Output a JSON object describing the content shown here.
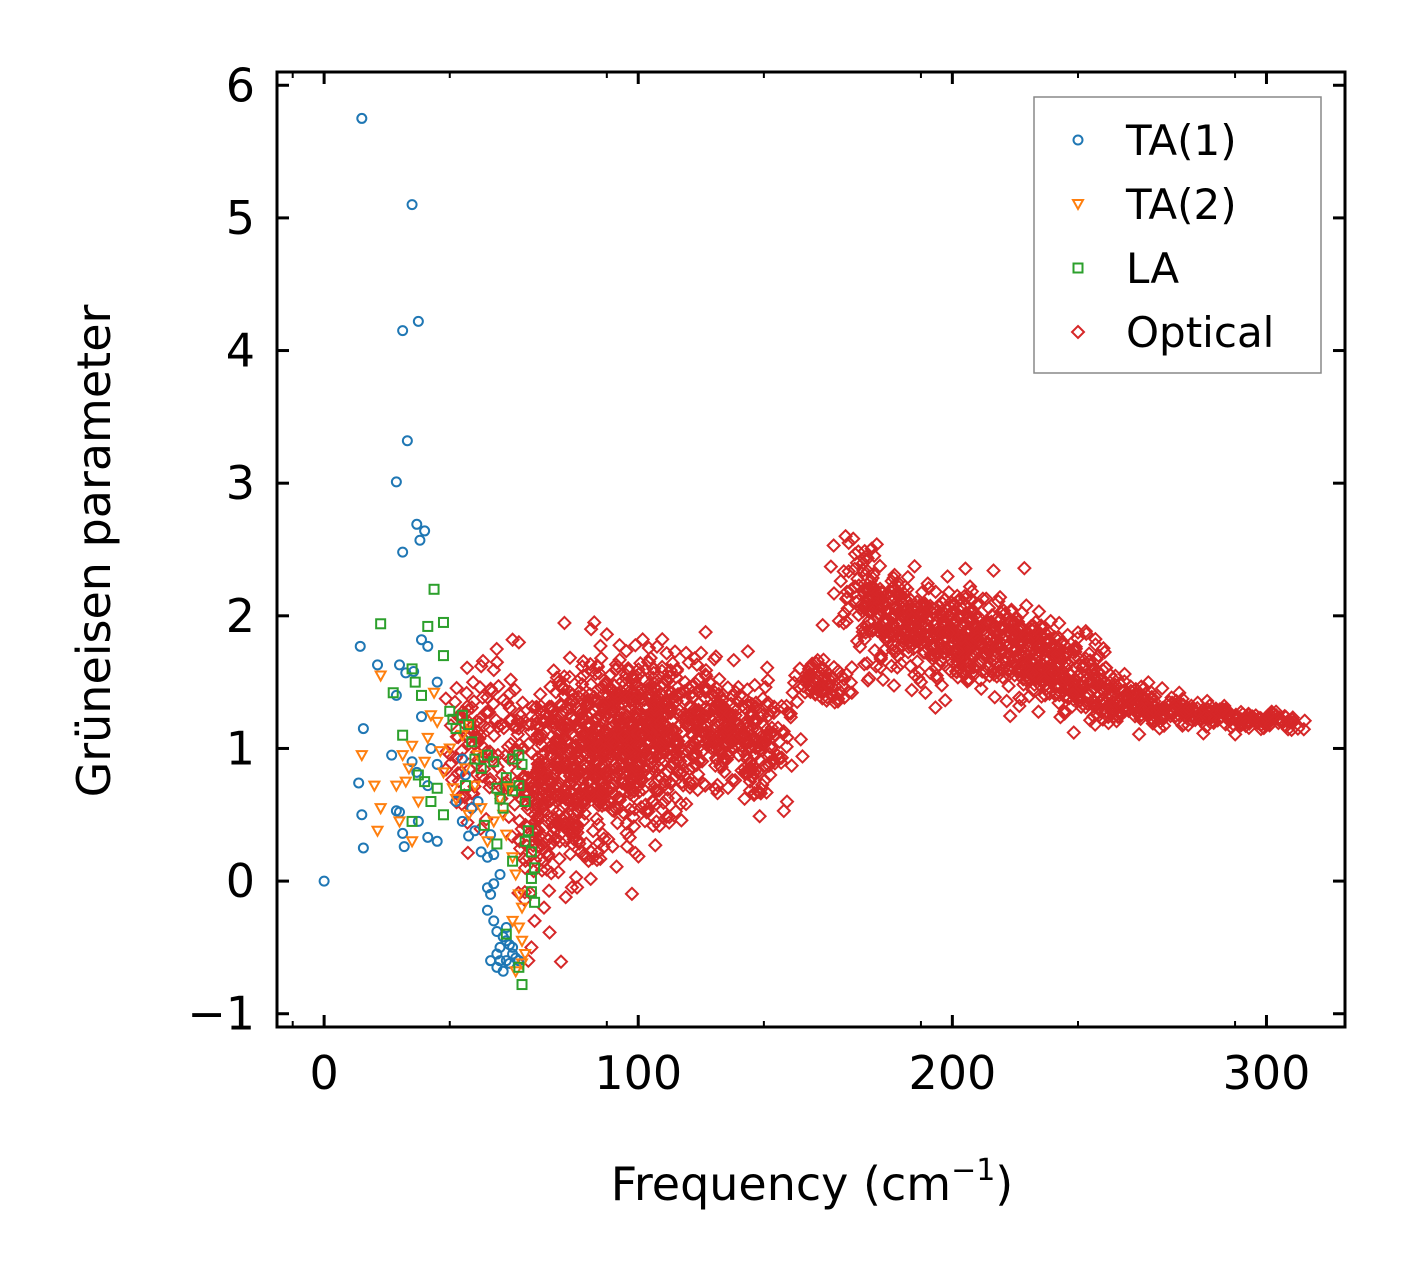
{
  "chart_data": {
    "type": "scatter",
    "title": "",
    "xlabel": "Frequency (cm",
    "xlabel_sup": "−1",
    "xlabel_end": ")",
    "ylabel": "Grüneisen parameter",
    "xlim": [
      -15,
      325
    ],
    "ylim": [
      -1.1,
      6.1
    ],
    "xticks": [
      0,
      100,
      200,
      300
    ],
    "xtick_labels": [
      "0",
      "100",
      "200",
      "300"
    ],
    "yticks": [
      -1,
      0,
      1,
      2,
      3,
      4,
      5,
      6
    ],
    "ytick_labels": [
      "−1",
      "0",
      "1",
      "2",
      "3",
      "4",
      "5",
      "6"
    ],
    "grid": false,
    "legend_position": "top-right",
    "series": [
      {
        "name": "TA(1)",
        "marker": "circle",
        "color": "#1f77b4",
        "points": [
          [
            0,
            0
          ],
          [
            12,
            5.75
          ],
          [
            28,
            5.1
          ],
          [
            30,
            4.22
          ],
          [
            25,
            4.15
          ],
          [
            26.5,
            3.32
          ],
          [
            23,
            3.01
          ],
          [
            29.5,
            2.69
          ],
          [
            32,
            2.64
          ],
          [
            30.5,
            2.57
          ],
          [
            25,
            2.48
          ],
          [
            11.5,
            1.77
          ],
          [
            17,
            1.63
          ],
          [
            24,
            1.63
          ],
          [
            26,
            1.57
          ],
          [
            33,
            1.77
          ],
          [
            31,
            1.82
          ],
          [
            28.5,
            1.58
          ],
          [
            23,
            1.4
          ],
          [
            36,
            1.5
          ],
          [
            12.5,
            1.15
          ],
          [
            31,
            1.24
          ],
          [
            21.5,
            0.95
          ],
          [
            34,
            1.0
          ],
          [
            28,
            0.9
          ],
          [
            29.5,
            0.82
          ],
          [
            36,
            0.88
          ],
          [
            11,
            0.74
          ],
          [
            33,
            0.72
          ],
          [
            12,
            0.5
          ],
          [
            23,
            0.53
          ],
          [
            25,
            0.36
          ],
          [
            24,
            0.52
          ],
          [
            30,
            0.45
          ],
          [
            33,
            0.33
          ],
          [
            36,
            0.3
          ],
          [
            12.5,
            0.25
          ],
          [
            25.5,
            0.26
          ],
          [
            42,
            0.6
          ],
          [
            44,
            0.45
          ],
          [
            45,
            0.8
          ],
          [
            46,
            0.34
          ],
          [
            48,
            0.38
          ],
          [
            49,
            0.6
          ],
          [
            50,
            0.22
          ],
          [
            52,
            0.18
          ],
          [
            53,
            0.35
          ],
          [
            54,
            0.2
          ],
          [
            44,
            0.92
          ],
          [
            47,
            0.55
          ],
          [
            52,
            -0.05
          ],
          [
            53,
            -0.1
          ],
          [
            54,
            -0.02
          ],
          [
            56,
            0.05
          ],
          [
            52,
            -0.22
          ],
          [
            54,
            -0.3
          ],
          [
            55,
            -0.38
          ],
          [
            57,
            -0.42
          ],
          [
            58,
            -0.35
          ],
          [
            59,
            -0.48
          ],
          [
            60,
            -0.55
          ],
          [
            55,
            -0.55
          ],
          [
            56,
            -0.6
          ],
          [
            57,
            -0.68
          ],
          [
            58,
            -0.6
          ],
          [
            59,
            -0.62
          ],
          [
            60,
            -0.5
          ],
          [
            61,
            -0.58
          ],
          [
            56,
            -0.5
          ],
          [
            58,
            -0.45
          ],
          [
            62,
            -0.6
          ],
          [
            55,
            -0.65
          ],
          [
            53,
            -0.6
          ]
        ]
      },
      {
        "name": "TA(2)",
        "marker": "triangle-down",
        "color": "#ff7f0e",
        "points": [
          [
            12,
            0.95
          ],
          [
            16,
            0.72
          ],
          [
            18,
            0.55
          ],
          [
            17,
            0.38
          ],
          [
            18,
            1.55
          ],
          [
            23,
            0.72
          ],
          [
            25,
            0.95
          ],
          [
            26,
            0.75
          ],
          [
            27,
            0.85
          ],
          [
            28,
            1.02
          ],
          [
            24,
            0.45
          ],
          [
            30,
            0.6
          ],
          [
            32,
            0.9
          ],
          [
            33,
            1.08
          ],
          [
            34,
            1.25
          ],
          [
            35,
            1.42
          ],
          [
            36,
            1.2
          ],
          [
            37,
            0.98
          ],
          [
            38,
            0.82
          ],
          [
            40,
            1.0
          ],
          [
            41,
            0.7
          ],
          [
            42,
            0.62
          ],
          [
            44,
            1.1
          ],
          [
            45,
            0.85
          ],
          [
            46,
            0.5
          ],
          [
            48,
            0.72
          ],
          [
            50,
            0.55
          ],
          [
            52,
            0.3
          ],
          [
            54,
            0.45
          ],
          [
            56,
            0.62
          ],
          [
            58,
            0.35
          ],
          [
            60,
            0.18
          ],
          [
            61,
            0.05
          ],
          [
            62,
            -0.1
          ],
          [
            63,
            -0.2
          ],
          [
            62,
            -0.35
          ],
          [
            63,
            -0.45
          ],
          [
            64,
            -0.55
          ],
          [
            63,
            -0.62
          ],
          [
            61,
            -0.68
          ],
          [
            28,
            0.3
          ],
          [
            46,
            1.18
          ],
          [
            49,
            0.95
          ],
          [
            57,
            0.5
          ],
          [
            60,
            -0.3
          ],
          [
            59,
            0.7
          ]
        ]
      },
      {
        "name": "LA",
        "marker": "square",
        "color": "#2ca02c",
        "points": [
          [
            18,
            1.94
          ],
          [
            35,
            2.2
          ],
          [
            38,
            1.95
          ],
          [
            33,
            1.92
          ],
          [
            38,
            1.7
          ],
          [
            22,
            1.42
          ],
          [
            28,
            1.6
          ],
          [
            29,
            1.5
          ],
          [
            31,
            1.4
          ],
          [
            40,
            1.28
          ],
          [
            41,
            1.22
          ],
          [
            42,
            1.15
          ],
          [
            44,
            1.25
          ],
          [
            46,
            1.18
          ],
          [
            47,
            1.05
          ],
          [
            48,
            0.92
          ],
          [
            50,
            0.85
          ],
          [
            52,
            0.95
          ],
          [
            54,
            0.9
          ],
          [
            55,
            0.7
          ],
          [
            56,
            0.62
          ],
          [
            57,
            0.55
          ],
          [
            58,
            0.78
          ],
          [
            60,
            0.68
          ],
          [
            62,
            0.95
          ],
          [
            63,
            0.88
          ],
          [
            64,
            0.6
          ],
          [
            65,
            0.38
          ],
          [
            66,
            0.22
          ],
          [
            67,
            0.1
          ],
          [
            66,
            0.02
          ],
          [
            66,
            -0.08
          ],
          [
            67,
            -0.16
          ],
          [
            64,
            0.3
          ],
          [
            62,
            0.72
          ],
          [
            60,
            0.92
          ],
          [
            30,
            0.8
          ],
          [
            32,
            0.75
          ],
          [
            34,
            0.6
          ],
          [
            36,
            0.7
          ],
          [
            38,
            0.5
          ],
          [
            28,
            0.45
          ],
          [
            25,
            1.1
          ],
          [
            45,
            0.72
          ],
          [
            51,
            0.42
          ],
          [
            55,
            0.28
          ],
          [
            62,
            -0.65
          ],
          [
            63,
            -0.78
          ],
          [
            60,
            0.15
          ],
          [
            58,
            -0.4
          ]
        ]
      },
      {
        "name": "Optical",
        "marker": "diamond",
        "color": "#d62728",
        "points": [],
        "clusters": [
          {
            "xc": 47,
            "xs": 4,
            "yc": 1.0,
            "ys": 0.3,
            "n": 70
          },
          {
            "xc": 60,
            "xs": 8,
            "yc": 1.05,
            "ys": 0.28,
            "n": 90
          },
          {
            "xc": 68,
            "xs": 4,
            "yc": 0.55,
            "ys": 0.3,
            "n": 90
          },
          {
            "xc": 80,
            "xs": 8,
            "yc": 0.8,
            "ys": 0.35,
            "n": 320
          },
          {
            "xc": 95,
            "xs": 10,
            "yc": 1.05,
            "ys": 0.33,
            "n": 420
          },
          {
            "xc": 110,
            "xs": 10,
            "yc": 1.15,
            "ys": 0.28,
            "n": 260
          },
          {
            "xc": 128,
            "xs": 8,
            "yc": 1.15,
            "ys": 0.2,
            "n": 170
          },
          {
            "xc": 138,
            "xs": 5,
            "yc": 1.0,
            "ys": 0.22,
            "n": 90
          },
          {
            "xc": 155,
            "xs": 3,
            "yc": 1.5,
            "ys": 0.08,
            "n": 40
          },
          {
            "xc": 162,
            "xs": 3,
            "yc": 1.45,
            "ys": 0.08,
            "n": 30
          },
          {
            "xc": 172,
            "xs": 4,
            "yc": 2.2,
            "ys": 0.18,
            "n": 80
          },
          {
            "xc": 185,
            "xs": 7,
            "yc": 1.95,
            "ys": 0.2,
            "n": 200
          },
          {
            "xc": 202,
            "xs": 7,
            "yc": 1.85,
            "ys": 0.18,
            "n": 220
          },
          {
            "xc": 220,
            "xs": 8,
            "yc": 1.75,
            "ys": 0.17,
            "n": 220
          },
          {
            "xc": 238,
            "xs": 7,
            "yc": 1.55,
            "ys": 0.14,
            "n": 170
          },
          {
            "xc": 255,
            "xs": 7,
            "yc": 1.35,
            "ys": 0.08,
            "n": 120
          },
          {
            "xc": 275,
            "xs": 8,
            "yc": 1.27,
            "ys": 0.05,
            "n": 110
          },
          {
            "xc": 298,
            "xs": 6,
            "yc": 1.2,
            "ys": 0.04,
            "n": 80
          }
        ],
        "outliers": [
          [
            166,
            2.6
          ],
          [
            167,
            2.55
          ],
          [
            86,
            1.95
          ],
          [
            85,
            1.9
          ],
          [
            90,
            1.86
          ],
          [
            60,
            1.82
          ],
          [
            62,
            1.8
          ],
          [
            120,
            1.72
          ],
          [
            118,
            1.68
          ],
          [
            190,
            1.5
          ],
          [
            195,
            1.55
          ],
          [
            230,
            1.45
          ],
          [
            245,
            1.32
          ],
          [
            262,
            1.25
          ],
          [
            308,
            1.14
          ],
          [
            310,
            1.15
          ],
          [
            70,
            -0.2
          ],
          [
            67,
            -0.3
          ],
          [
            66,
            -0.5
          ],
          [
            65,
            -0.6
          ],
          [
            64,
            0.1
          ],
          [
            75,
            0.3
          ],
          [
            85,
            0.22
          ],
          [
            142,
            0.8
          ],
          [
            145,
            1.05
          ],
          [
            150,
            1.55
          ],
          [
            168,
            1.42
          ],
          [
            55,
            1.65
          ],
          [
            50,
            1.62
          ]
        ]
      }
    ]
  }
}
